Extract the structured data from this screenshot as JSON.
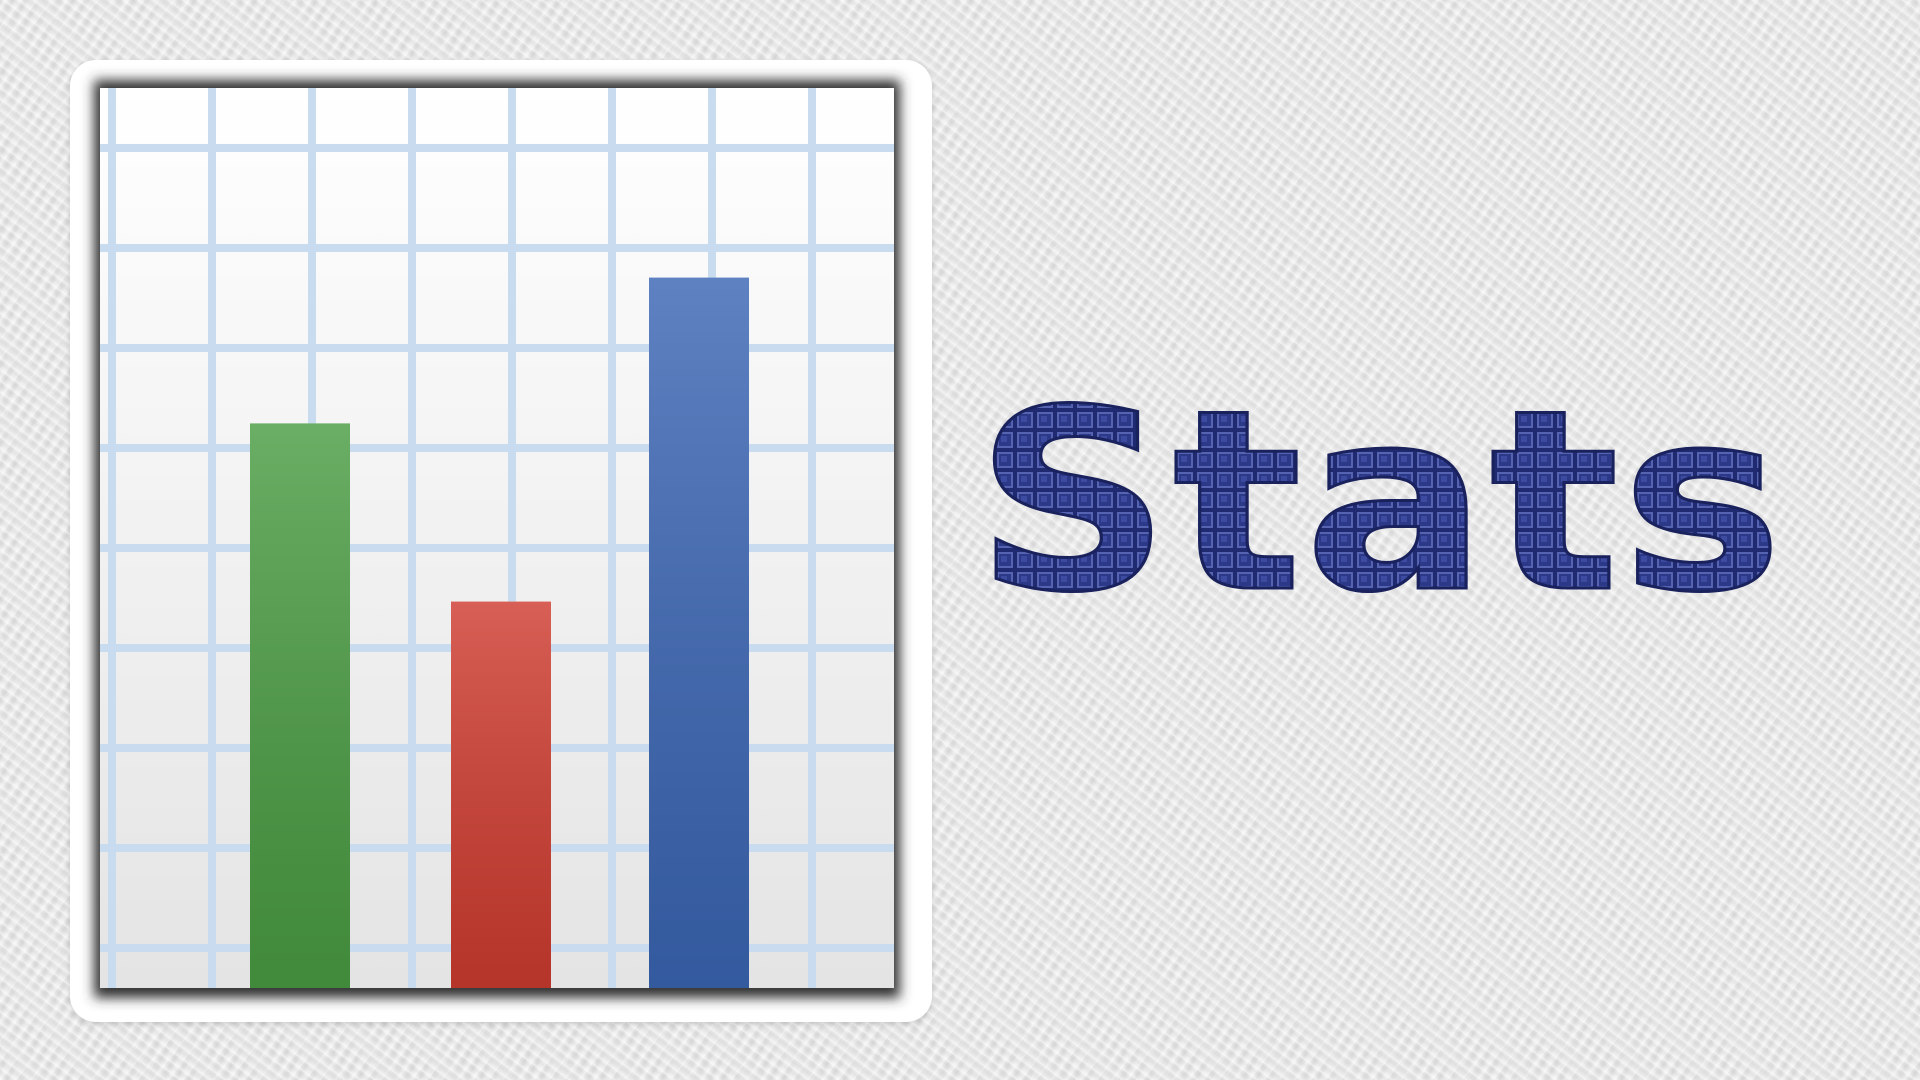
{
  "title": {
    "text": "Stats"
  },
  "icon": {
    "name": "bar-chart-icon",
    "bars": [
      {
        "color": "#4a9c43",
        "level": 0.66
      },
      {
        "color": "#cf3c30",
        "level": 0.44
      },
      {
        "color": "#3b66b4",
        "level": 0.84
      }
    ]
  },
  "colors": {
    "background": "#e9e9e9",
    "grid": "#c9dcef",
    "title_fill": "#2f3d8c"
  }
}
